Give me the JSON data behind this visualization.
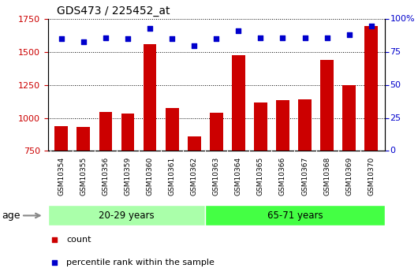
{
  "title": "GDS473 / 225452_at",
  "categories": [
    "GSM10354",
    "GSM10355",
    "GSM10356",
    "GSM10359",
    "GSM10360",
    "GSM10361",
    "GSM10362",
    "GSM10363",
    "GSM10364",
    "GSM10365",
    "GSM10366",
    "GSM10367",
    "GSM10368",
    "GSM10369",
    "GSM10370"
  ],
  "counts": [
    940,
    930,
    1045,
    1035,
    1560,
    1075,
    860,
    1040,
    1475,
    1120,
    1135,
    1140,
    1440,
    1250,
    1700
  ],
  "percentile_ranks": [
    85,
    83,
    86,
    85,
    93,
    85,
    80,
    85,
    91,
    86,
    86,
    86,
    86,
    88,
    95
  ],
  "group1_label": "20-29 years",
  "group1_count": 7,
  "group2_label": "65-71 years",
  "group2_count": 8,
  "age_label": "age",
  "ylim_left": [
    750,
    1750
  ],
  "ylim_right": [
    0,
    100
  ],
  "yticks_left": [
    750,
    1000,
    1250,
    1500,
    1750
  ],
  "yticks_right": [
    0,
    25,
    50,
    75,
    100
  ],
  "bar_color": "#cc0000",
  "dot_color": "#0000cc",
  "group1_bg": "#aaffaa",
  "group2_bg": "#44ff44",
  "tick_area_bg": "#cccccc",
  "legend_count_label": "count",
  "legend_percentile_label": "percentile rank within the sample",
  "right_axis_label_100": "100%"
}
